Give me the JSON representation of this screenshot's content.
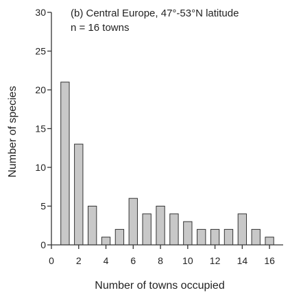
{
  "chart_data": {
    "type": "bar",
    "title": "(b) Central Europe, 47°-53°N latitude",
    "subtitle": "n = 16 towns",
    "xlabel": "Number of towns occupied",
    "ylabel": "Number of species",
    "categories": [
      1,
      2,
      3,
      4,
      5,
      6,
      7,
      8,
      9,
      10,
      11,
      12,
      13,
      14,
      15,
      16
    ],
    "values": [
      21,
      13,
      5,
      1,
      2,
      6,
      4,
      5,
      4,
      3,
      2,
      2,
      2,
      4,
      2,
      1
    ],
    "xlim": [
      0,
      17
    ],
    "ylim": [
      0,
      30
    ],
    "xticks": [
      0,
      2,
      4,
      6,
      8,
      10,
      12,
      14,
      16
    ],
    "yticks": [
      0,
      5,
      10,
      15,
      20,
      25,
      30
    ],
    "grid": false,
    "bar_color": "#c8c8c8",
    "edge_color": "#333333"
  }
}
